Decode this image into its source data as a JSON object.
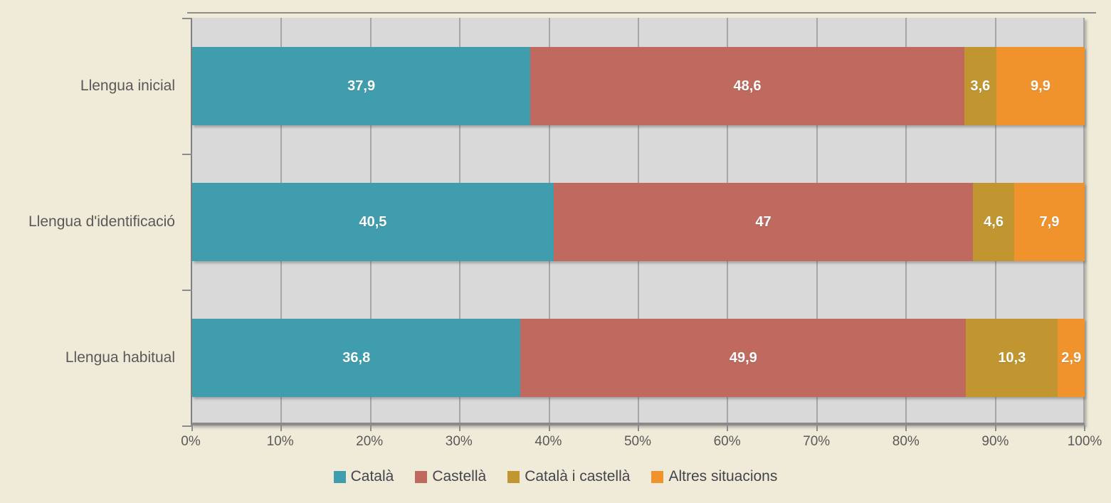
{
  "chart_data": {
    "type": "bar",
    "orientation": "horizontal-stacked",
    "title": "",
    "xlabel": "",
    "ylabel": "",
    "categories": [
      "Llengua inicial",
      "Llengua d'identificació",
      "Llengua habitual"
    ],
    "series": [
      {
        "name": "Català",
        "color": "#3F9DAE",
        "values": [
          37.9,
          40.5,
          36.8
        ],
        "labels": [
          "37,9",
          "40,5",
          "36,8"
        ]
      },
      {
        "name": "Castellà",
        "color": "#C0695E",
        "values": [
          48.6,
          47.0,
          49.9
        ],
        "labels": [
          "48,6",
          "47",
          "49,9"
        ]
      },
      {
        "name": "Català i castellà",
        "color": "#C1952F",
        "values": [
          3.6,
          4.6,
          10.3
        ],
        "labels": [
          "3,6",
          "4,6",
          "10,3"
        ]
      },
      {
        "name": "Altres situacions",
        "color": "#F0932D",
        "values": [
          9.9,
          7.9,
          2.9
        ],
        "labels": [
          "9,9",
          "7,9",
          "2,9"
        ]
      }
    ],
    "x_axis": {
      "min": 0,
      "max": 100,
      "tick_labels": [
        "0%",
        "10%",
        "20%",
        "30%",
        "40%",
        "50%",
        "60%",
        "70%",
        "80%",
        "90%",
        "100%"
      ]
    },
    "grid": true,
    "legend_position": "bottom",
    "legend_entries": [
      "Català",
      "Castellà",
      "Català i castellà",
      "Altres situacions"
    ]
  },
  "colors": {
    "background": "#F0EBD8",
    "plot_background": "#D9D9D9",
    "gridline": "#A6A6A6",
    "axis_line": "#8C8C8C",
    "axis_text": "#595959",
    "data_label_text": "#FFFFFF"
  }
}
